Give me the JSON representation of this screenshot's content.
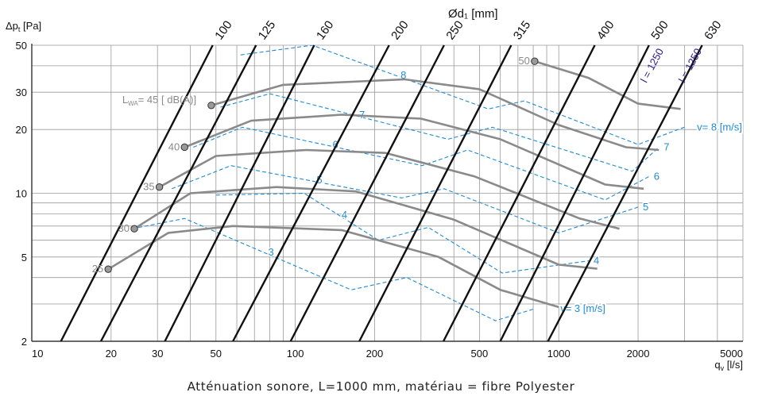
{
  "colors": {
    "grid": "#9a9a9a",
    "axis": "#111111",
    "diameter_line": "#111111",
    "velocity_line": "#1f8bd6",
    "sound_line": "#8a8a8a",
    "sound_marker_fill": "#9a9a9a",
    "length_label": "#2a1a8c"
  },
  "chart_data": {
    "type": "line",
    "title": "",
    "xlabel": "q_v [l/s]",
    "ylabel": "Δp_t [Pa]",
    "x_scale": "log",
    "y_scale": "log",
    "xlim": [
      10,
      5000
    ],
    "ylim": [
      2,
      50
    ],
    "grid": true,
    "x_ticks": [
      10,
      20,
      30,
      50,
      100,
      200,
      500,
      1000,
      2000,
      5000
    ],
    "x_tick_labels": [
      "10",
      "20",
      "30",
      "50",
      "100",
      "200",
      "500",
      "1000",
      "2000",
      "5000"
    ],
    "x_minor_grid": [
      40,
      60,
      70,
      80,
      90,
      300,
      400,
      600,
      700,
      800,
      900,
      3000,
      4000
    ],
    "y_ticks": [
      2,
      5,
      10,
      20,
      30,
      50
    ],
    "y_tick_labels": [
      "2",
      "5",
      "10",
      "20",
      "30",
      "50"
    ],
    "y_minor_grid": [
      3,
      4,
      6,
      7,
      8,
      9,
      40
    ],
    "diameter_axis_label": "Ød₁ [mm]",
    "diameter_lines": [
      {
        "label": "100",
        "points": [
          [
            12.9,
            2
          ],
          [
            48.6,
            50
          ]
        ]
      },
      {
        "label": "125",
        "points": [
          [
            18.3,
            2
          ],
          [
            71,
            50
          ]
        ]
      },
      {
        "label": "160",
        "points": [
          [
            32,
            2
          ],
          [
            118,
            50
          ]
        ]
      },
      {
        "label": "200",
        "points": [
          [
            58,
            2
          ],
          [
            227,
            50
          ]
        ]
      },
      {
        "label": "250",
        "points": [
          [
            96,
            2
          ],
          [
            367,
            50
          ]
        ]
      },
      {
        "label": "315",
        "points": [
          [
            175,
            2
          ],
          [
            660,
            50
          ]
        ]
      },
      {
        "label": "400",
        "points": [
          [
            365,
            2
          ],
          [
            1370,
            50
          ]
        ]
      },
      {
        "label": "500",
        "points": [
          [
            600,
            2
          ],
          [
            2200,
            50
          ]
        ]
      },
      {
        "label": "630",
        "points": [
          [
            910,
            2
          ],
          [
            3500,
            50
          ]
        ]
      }
    ],
    "velocity_lines": [
      {
        "label": "3",
        "points": [
          [
            24,
            6.8
          ],
          [
            38,
            7.6
          ],
          [
            163,
            3.5
          ],
          [
            265,
            4
          ],
          [
            575,
            2.5
          ],
          [
            810,
            2.85
          ]
        ]
      },
      {
        "label": "4",
        "points": [
          [
            50,
            9.8
          ],
          [
            108,
            10
          ],
          [
            207,
            6
          ],
          [
            320,
            6.9
          ],
          [
            610,
            4.2
          ],
          [
            1300,
            4.8
          ]
        ]
      },
      {
        "label": "5",
        "points": [
          [
            34,
            10.5
          ],
          [
            57,
            13.5
          ],
          [
            253,
            9.5
          ],
          [
            367,
            10.5
          ],
          [
            1000,
            6.5
          ],
          [
            2000,
            8.6
          ]
        ]
      },
      {
        "label": "6",
        "points": [
          [
            41,
            16.5
          ],
          [
            63,
            20.5
          ],
          [
            303,
            13.5
          ],
          [
            451,
            16
          ],
          [
            1500,
            9.3
          ],
          [
            2200,
            12
          ]
        ]
      },
      {
        "label": "7",
        "points": [
          [
            52,
            25.5
          ],
          [
            80,
            29.5
          ],
          [
            380,
            18
          ],
          [
            560,
            20.5
          ],
          [
            1900,
            12.7
          ],
          [
            2400,
            16.5
          ]
        ]
      },
      {
        "label": "8",
        "points": [
          [
            62,
            45
          ],
          [
            116,
            50
          ],
          [
            540,
            25
          ],
          [
            741,
            27.3
          ],
          [
            2000,
            17
          ],
          [
            3000,
            20.5
          ]
        ]
      }
    ],
    "velocity_annotations": [
      {
        "text": "v= 3 [m/s]",
        "at": [
          1000,
          2.85
        ]
      },
      {
        "text": "v= 8 [m/s]",
        "at": [
          3300,
          20.5
        ]
      }
    ],
    "sound_lines": [
      {
        "label": "25",
        "points": [
          [
            19.5,
            4.38
          ],
          [
            33,
            6.5
          ],
          [
            58,
            7
          ],
          [
            150,
            6.7
          ],
          [
            350,
            5
          ],
          [
            600,
            3.5
          ],
          [
            1000,
            2.9
          ]
        ]
      },
      {
        "label": "30",
        "points": [
          [
            24.5,
            6.8
          ],
          [
            40,
            10
          ],
          [
            85,
            10.7
          ],
          [
            170,
            10.2
          ],
          [
            400,
            7.5
          ],
          [
            1000,
            4.6
          ],
          [
            1400,
            4.4
          ]
        ]
      },
      {
        "label": "35",
        "points": [
          [
            30.5,
            10.7
          ],
          [
            50,
            15
          ],
          [
            110,
            16
          ],
          [
            220,
            15.5
          ],
          [
            480,
            12
          ],
          [
            1200,
            7.6
          ],
          [
            1700,
            6.8
          ]
        ]
      },
      {
        "label": "40",
        "points": [
          [
            38,
            16.5
          ],
          [
            68,
            22
          ],
          [
            150,
            23.5
          ],
          [
            300,
            22.5
          ],
          [
            600,
            18
          ],
          [
            1500,
            11
          ],
          [
            2100,
            10.5
          ]
        ]
      },
      {
        "label": "45",
        "points": [
          [
            48,
            26
          ],
          [
            90,
            32.5
          ],
          [
            260,
            34.5
          ],
          [
            500,
            31
          ],
          [
            1000,
            21
          ],
          [
            1800,
            16.5
          ],
          [
            2400,
            16
          ]
        ]
      },
      {
        "label": "50",
        "points": [
          [
            810,
            42
          ],
          [
            1300,
            35
          ],
          [
            2000,
            26.5
          ],
          [
            2900,
            25
          ]
        ]
      }
    ],
    "sound_label_prefix": "L",
    "sound_label_sub": "WA",
    "sound_label_text": "= 45 [  dB(A)]",
    "length_labels": [
      "l = 1250",
      "l = 1250"
    ]
  },
  "caption": "Atténuation sonore, L=1000 mm, matériau = fibre Polyester"
}
